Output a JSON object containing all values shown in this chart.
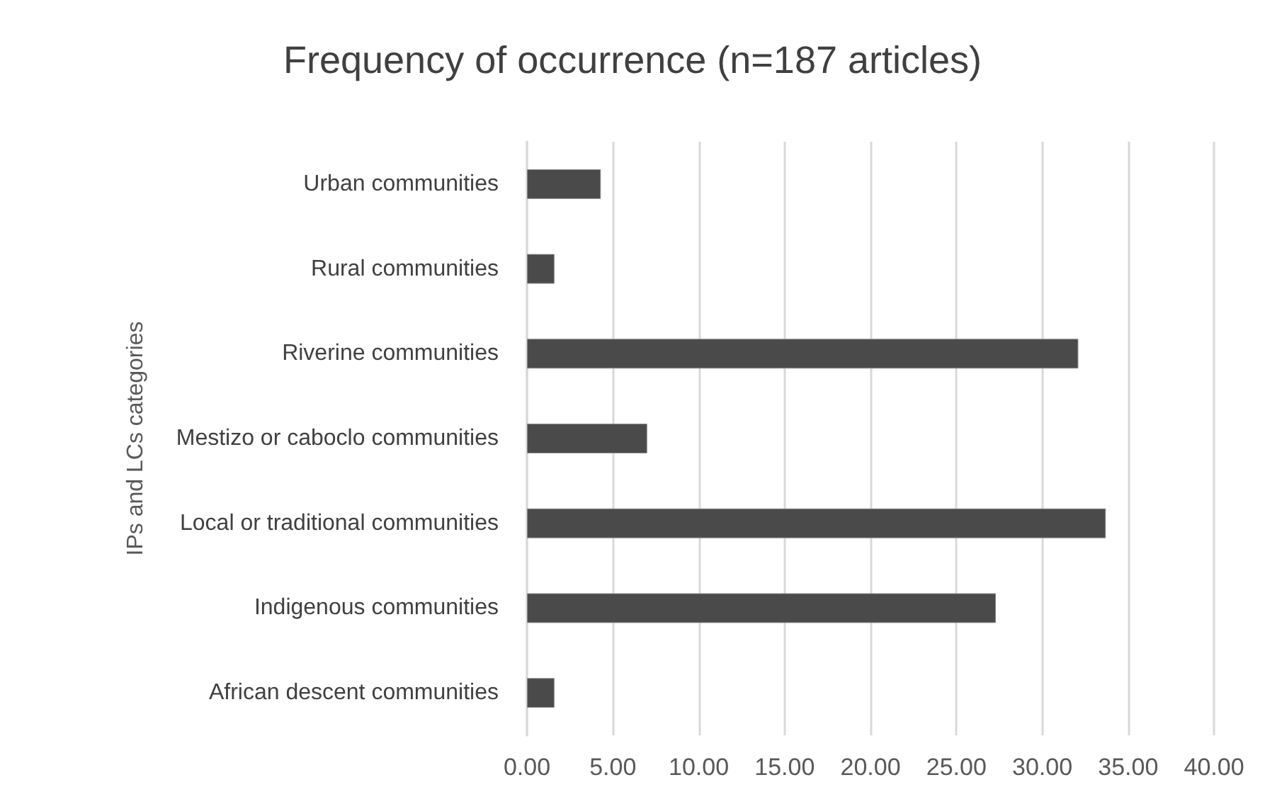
{
  "chart_data": {
    "type": "bar",
    "orientation": "horizontal",
    "title": "Frequency of occurrence (n=187 articles)",
    "ylabel": "IPs and LCs categories",
    "categories": [
      "Urban communities",
      "Rural communities",
      "Riverine communities",
      "Mestizo or caboclo communities",
      "Local or traditional communities",
      "Indigenous communities",
      "African descent communities"
    ],
    "values": [
      4.3,
      1.6,
      32.1,
      7.0,
      33.7,
      27.3,
      1.6
    ],
    "color": "#4a4a4a",
    "xlim": [
      0,
      40
    ],
    "xticks": [
      {
        "value": 0,
        "label": "0.00"
      },
      {
        "value": 5,
        "label": "5.00"
      },
      {
        "value": 10,
        "label": "10.00"
      },
      {
        "value": 15,
        "label": "15.00"
      },
      {
        "value": 20,
        "label": "20.00"
      },
      {
        "value": 25,
        "label": "25.00"
      },
      {
        "value": 30,
        "label": "30.00"
      },
      {
        "value": 35,
        "label": "35.00"
      },
      {
        "value": 40,
        "label": "40.00"
      }
    ],
    "grid": "x"
  }
}
